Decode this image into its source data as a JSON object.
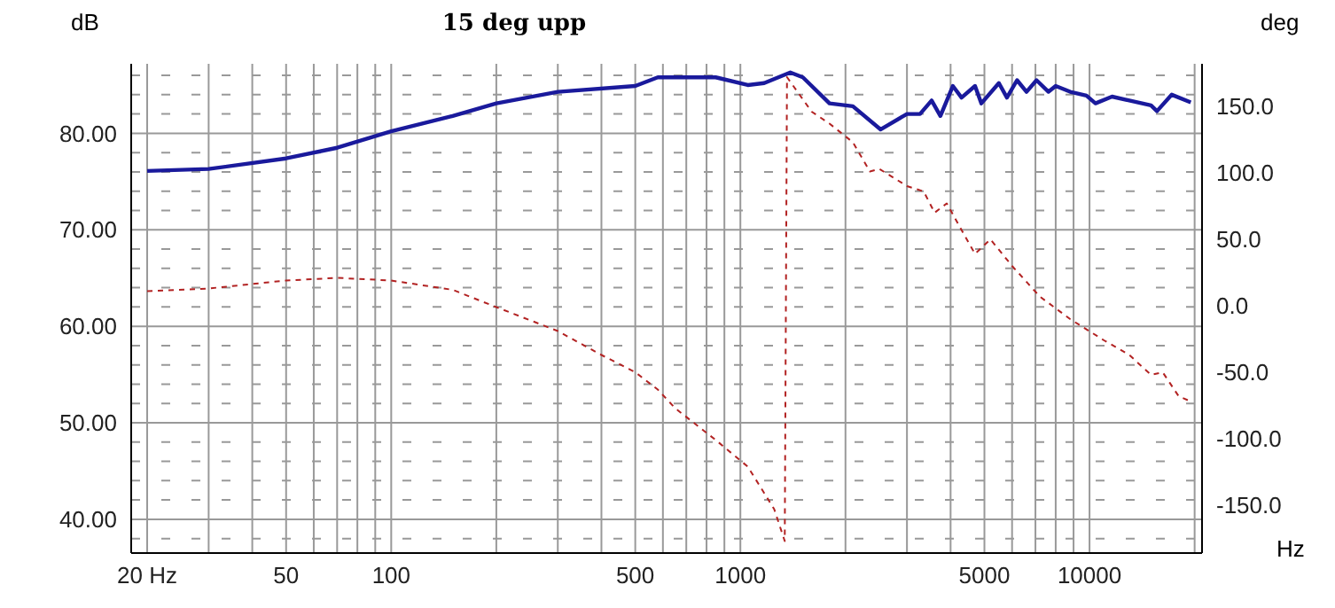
{
  "chart_data": {
    "type": "line",
    "title": "15 deg upp",
    "xlabel": "Hz",
    "ylabel": "dB",
    "y2label": "deg",
    "log": "x",
    "grid": true,
    "marker": "none",
    "xlim": [
      18,
      21000
    ],
    "xticks": [
      {
        "value": 20,
        "label": "20 Hz"
      },
      {
        "value": 30,
        "label": null
      },
      {
        "value": 40,
        "label": null
      },
      50,
      {
        "value": 60,
        "label": null
      },
      {
        "value": 70,
        "label": null
      },
      {
        "value": 80,
        "label": null
      },
      {
        "value": 90,
        "label": null
      },
      100,
      {
        "value": 200,
        "label": null
      },
      {
        "value": 300,
        "label": null
      },
      {
        "value": 400,
        "label": null
      },
      500,
      {
        "value": 600,
        "label": null
      },
      {
        "value": 700,
        "label": null
      },
      {
        "value": 800,
        "label": null
      },
      {
        "value": 900,
        "label": null
      },
      1000,
      {
        "value": 2000,
        "label": null
      },
      {
        "value": 3000,
        "label": null
      },
      {
        "value": 4000,
        "label": null
      },
      5000,
      {
        "value": 6000,
        "label": null
      },
      {
        "value": 7000,
        "label": null
      },
      {
        "value": 8000,
        "label": null
      },
      {
        "value": 9000,
        "label": null
      },
      10000,
      {
        "value": 20000,
        "label": null
      }
    ],
    "ylim": [
      36.5,
      87.2
    ],
    "yticks": [
      {
        "value": 38,
        "label": null
      },
      {
        "value": 40,
        "label": "40.00"
      },
      {
        "value": 42,
        "label": null
      },
      {
        "value": 44,
        "label": null
      },
      {
        "value": 46,
        "label": null
      },
      {
        "value": 48,
        "label": null
      },
      {
        "value": 50,
        "label": "50.00"
      },
      {
        "value": 52,
        "label": null
      },
      {
        "value": 54,
        "label": null
      },
      {
        "value": 56,
        "label": null
      },
      {
        "value": 58,
        "label": null
      },
      {
        "value": 60,
        "label": "60.00"
      },
      {
        "value": 62,
        "label": null
      },
      {
        "value": 64,
        "label": null
      },
      {
        "value": 66,
        "label": null
      },
      {
        "value": 68,
        "label": null
      },
      {
        "value": 70,
        "label": "70.00"
      },
      {
        "value": 72,
        "label": null
      },
      {
        "value": 74,
        "label": null
      },
      {
        "value": 76,
        "label": null
      },
      {
        "value": 78,
        "label": null
      },
      {
        "value": 80,
        "label": "80.00"
      },
      {
        "value": 82,
        "label": null
      },
      {
        "value": 84,
        "label": null
      },
      {
        "value": 86,
        "label": null
      }
    ],
    "y2lim": [
      -186,
      182
    ],
    "y2ticks": [
      {
        "value": -150,
        "label": "-150.0"
      },
      {
        "value": -100,
        "label": "-100.0"
      },
      {
        "value": -50,
        "label": "-50.0"
      },
      {
        "value": 0,
        "label": "0.0"
      },
      {
        "value": 50,
        "label": "50.0"
      },
      {
        "value": 100,
        "label": "100.0"
      },
      {
        "value": 150,
        "label": "150.0"
      }
    ],
    "series": [
      {
        "color": "#1a1a9c",
        "line_style": "solid",
        "x": [
          20,
          30,
          50,
          70,
          100,
          150,
          200,
          300,
          500,
          580,
          850,
          1050,
          1170,
          1390,
          1510,
          1800,
          2100,
          2520,
          3000,
          3270,
          3530,
          3740,
          4060,
          4300,
          4700,
          4900,
          5500,
          5800,
          6200,
          6600,
          7050,
          7630,
          8000,
          8800,
          9800,
          10400,
          11600,
          13000,
          15000,
          15600,
          17200,
          19500
        ],
        "values": [
          76.1,
          76.3,
          77.4,
          78.5,
          80.2,
          81.8,
          83.1,
          84.3,
          84.9,
          85.8,
          85.8,
          85.0,
          85.2,
          86.3,
          85.8,
          83.1,
          82.8,
          80.4,
          82.0,
          82.0,
          83.4,
          81.8,
          84.9,
          83.7,
          84.9,
          83.1,
          85.2,
          83.7,
          85.5,
          84.3,
          85.5,
          84.3,
          84.9,
          84.3,
          83.9,
          83.1,
          83.8,
          83.4,
          82.9,
          82.3,
          84.0,
          83.2
        ]
      },
      {
        "color": "#b22222",
        "line_style": "dashed",
        "axis": "y2",
        "x": [
          20,
          30,
          50,
          70,
          100,
          150,
          200,
          300,
          400,
          500,
          580,
          650,
          850,
          1050,
          1250,
          1340,
          1360,
          1600,
          1800,
          2100,
          2350,
          2500,
          3000,
          3350,
          3600,
          3900,
          4300,
          4700,
          5200,
          6000,
          7200,
          8800,
          11000,
          13000,
          15000,
          16200,
          18000,
          19500
        ],
        "values": [
          11,
          13,
          19,
          21,
          19,
          12,
          -1,
          -19,
          -37,
          -50,
          -63,
          -77,
          -101,
          -121,
          -153,
          -177,
          172,
          146,
          137,
          123,
          101,
          103,
          90,
          86,
          70,
          77,
          57,
          39,
          50,
          30,
          7,
          -10,
          -26,
          -37,
          -52,
          -50,
          -68,
          -72
        ]
      }
    ]
  }
}
